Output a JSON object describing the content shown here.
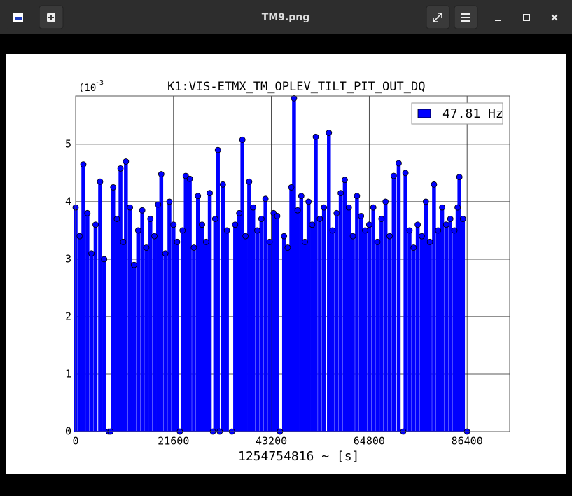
{
  "window": {
    "title": "TM9.png"
  },
  "chart_data": {
    "type": "stem",
    "title": "K1:VIS-ETMX_TM_OPLEV_TILT_PIT_OUT_DQ",
    "xlabel": "1254754816 ~ [s]",
    "y_offset_base": "(10",
    "y_offset_exponent": "-3",
    "x": [
      0,
      900,
      1700,
      2600,
      3500,
      4400,
      5400,
      6300,
      7300,
      7700,
      8300,
      9100,
      9900,
      10500,
      11100,
      12000,
      12900,
      13800,
      14700,
      15600,
      16500,
      17400,
      18200,
      18900,
      19800,
      20700,
      21600,
      22400,
      23000,
      23600,
      24300,
      25200,
      26100,
      27000,
      27900,
      28800,
      29600,
      30300,
      30800,
      31400,
      31800,
      32500,
      33400,
      34500,
      35200,
      36100,
      36800,
      37500,
      38300,
      39200,
      40100,
      41000,
      41900,
      42800,
      43700,
      44500,
      45100,
      46000,
      46800,
      47600,
      48200,
      49000,
      49800,
      50600,
      51400,
      52200,
      53000,
      53900,
      54800,
      55900,
      56700,
      57600,
      58500,
      59400,
      60300,
      61200,
      62100,
      63000,
      63900,
      64800,
      65700,
      66600,
      67500,
      68400,
      69300,
      70200,
      71300,
      72300,
      72800,
      73700,
      74600,
      75500,
      76400,
      77300,
      78200,
      79100,
      80000,
      80900,
      81800,
      82700,
      83600,
      84300,
      84700,
      85500,
      86400
    ],
    "series": [
      {
        "name": "47.81 Hz",
        "color": "#0000ff",
        "values": [
          0.0039,
          0.0034,
          0.00465,
          0.0038,
          0.0031,
          0.0036,
          0.00435,
          0.003,
          0,
          0,
          0.00425,
          0.0037,
          0.00458,
          0.0033,
          0.0047,
          0.0039,
          0.0029,
          0.0035,
          0.00385,
          0.0032,
          0.0037,
          0.0034,
          0.00395,
          0.00448,
          0.0031,
          0.004,
          0.0036,
          0.0033,
          0,
          0.0035,
          0.00445,
          0.0044,
          0.0032,
          0.0041,
          0.0036,
          0.0033,
          0.00415,
          0,
          0.0037,
          0.0049,
          0,
          0.0043,
          0.0035,
          0,
          0.0036,
          0.0038,
          0.00508,
          0.0034,
          0.00435,
          0.0039,
          0.0035,
          0.0037,
          0.00405,
          0.0033,
          0.0038,
          0.00375,
          0,
          0.0034,
          0.0032,
          0.00425,
          0.0058,
          0.00385,
          0.0041,
          0.0033,
          0.004,
          0.0036,
          0.00513,
          0.0037,
          0.0039,
          0.0052,
          0.0035,
          0.0038,
          0.00415,
          0.00438,
          0.0039,
          0.0034,
          0.0041,
          0.00375,
          0.0035,
          0.0036,
          0.0039,
          0.0033,
          0.0037,
          0.004,
          0.0034,
          0.00445,
          0.00467,
          0,
          0.0045,
          0.0035,
          0.0032,
          0.0036,
          0.0034,
          0.004,
          0.0033,
          0.0043,
          0.0035,
          0.0039,
          0.0036,
          0.0037,
          0.0035,
          0.0039,
          0.00443,
          0.0037,
          0
        ]
      }
    ],
    "xlim": [
      0,
      95800
    ],
    "ylim": [
      0,
      0.00584
    ],
    "xticks": [
      0,
      21600,
      43200,
      64800,
      86400
    ],
    "yticks": [
      {
        "value": 0,
        "label": "0"
      },
      {
        "value": 0.001,
        "label": "1"
      },
      {
        "value": 0.002,
        "label": "2"
      },
      {
        "value": 0.003,
        "label": "3"
      },
      {
        "value": 0.004,
        "label": "4"
      },
      {
        "value": 0.005,
        "label": "5"
      }
    ],
    "grid": true,
    "legend": "upper right"
  }
}
